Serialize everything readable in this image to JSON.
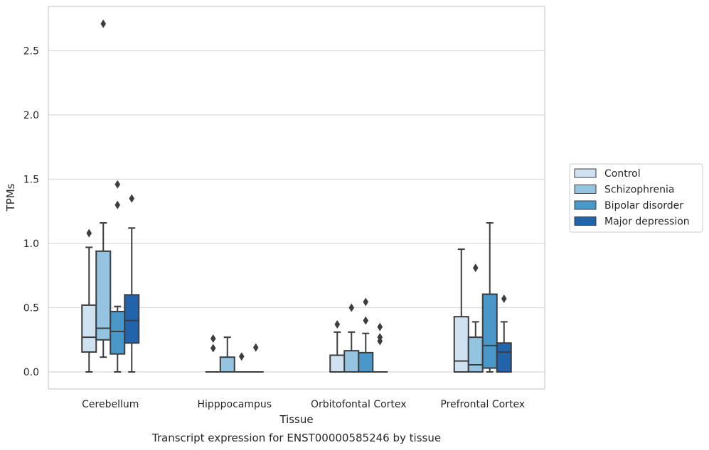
{
  "chart_data": {
    "type": "box",
    "title": "",
    "caption": "Transcript expression for ENST00000585246 by tissue",
    "xlabel": "Tissue",
    "ylabel": "TPMs",
    "ylim": [
      -0.13,
      2.87
    ],
    "yticks": [
      "0.0",
      "0.5",
      "1.0",
      "1.5",
      "2.0",
      "2.5"
    ],
    "ytick_values": [
      0,
      0.5,
      1.0,
      1.5,
      2.0,
      2.5
    ],
    "grid": "horizontal",
    "legend_position": "right",
    "categories": [
      "Cerebellum",
      "Hipppocampus",
      "Orbitofontal Cortex",
      "Prefrontal Cortex"
    ],
    "series": [
      {
        "name": "Control",
        "color": "#d0e1f2",
        "boxes": [
          {
            "whislo": 0,
            "q1": 0.155,
            "med": 0.27,
            "q3": 0.52,
            "whishi": 0.97,
            "fliers": [
              1.08
            ]
          },
          {
            "whislo": 0,
            "q1": 0,
            "med": 0,
            "q3": 0,
            "whishi": 0,
            "fliers": [
              0.26,
              0.185
            ]
          },
          {
            "whislo": 0,
            "q1": 0,
            "med": 0,
            "q3": 0.13,
            "whishi": 0.31,
            "fliers": [
              0.37
            ]
          },
          {
            "whislo": 0,
            "q1": 0,
            "med": 0.085,
            "q3": 0.43,
            "whishi": 0.955,
            "fliers": []
          }
        ]
      },
      {
        "name": "Schizophrenia",
        "color": "#94c4df",
        "boxes": [
          {
            "whislo": 0.115,
            "q1": 0.25,
            "med": 0.34,
            "q3": 0.94,
            "whishi": 1.16,
            "fliers": [
              2.71
            ]
          },
          {
            "whislo": 0,
            "q1": 0,
            "med": 0,
            "q3": 0.115,
            "whishi": 0.27,
            "fliers": []
          },
          {
            "whislo": 0,
            "q1": 0,
            "med": 0,
            "q3": 0.165,
            "whishi": 0.31,
            "fliers": [
              0.5
            ]
          },
          {
            "whislo": 0,
            "q1": 0,
            "med": 0.055,
            "q3": 0.27,
            "whishi": 0.39,
            "fliers": [
              0.81
            ]
          }
        ]
      },
      {
        "name": "Bipolar disorder",
        "color": "#4a98c9",
        "boxes": [
          {
            "whislo": 0,
            "q1": 0.14,
            "med": 0.315,
            "q3": 0.47,
            "whishi": 0.51,
            "fliers": [
              1.46,
              1.3
            ]
          },
          {
            "whislo": 0,
            "q1": 0,
            "med": 0,
            "q3": 0,
            "whishi": 0,
            "fliers": [
              0.12
            ]
          },
          {
            "whislo": 0,
            "q1": 0,
            "med": 0,
            "q3": 0.15,
            "whishi": 0.3,
            "fliers": [
              0.545,
              0.4
            ]
          },
          {
            "whislo": 0,
            "q1": 0.03,
            "med": 0.205,
            "q3": 0.605,
            "whishi": 1.16,
            "fliers": []
          }
        ]
      },
      {
        "name": "Major depression",
        "color": "#2164ab",
        "boxes": [
          {
            "whislo": 0,
            "q1": 0.225,
            "med": 0.4,
            "q3": 0.6,
            "whishi": 1.12,
            "fliers": [
              1.35
            ]
          },
          {
            "whislo": 0,
            "q1": 0,
            "med": 0,
            "q3": 0,
            "whishi": 0,
            "fliers": [
              0.19
            ]
          },
          {
            "whislo": 0,
            "q1": 0,
            "med": 0,
            "q3": 0,
            "whishi": 0,
            "fliers": [
              0.35,
              0.27,
              0.24
            ]
          },
          {
            "whislo": 0,
            "q1": 0,
            "med": 0.155,
            "q3": 0.225,
            "whishi": 0.39,
            "fliers": [
              0.57
            ]
          }
        ]
      }
    ]
  }
}
